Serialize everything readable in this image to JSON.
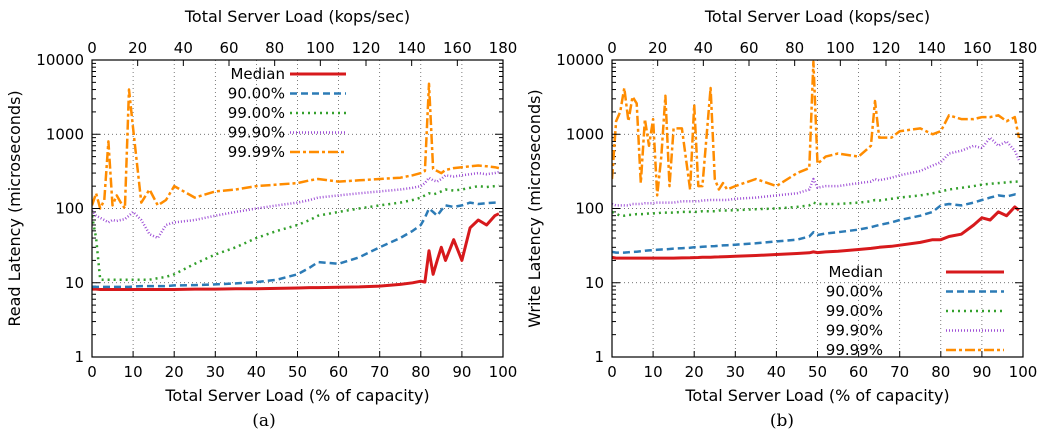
{
  "figure": {
    "captions": [
      "(a)",
      "(b)"
    ]
  },
  "chart_data": [
    {
      "type": "line",
      "panel": "(a)",
      "xlabel": "Total Server Load (% of capacity)",
      "x2label": "Total Server Load (kops/sec)",
      "ylabel": "Read Latency (microseconds)",
      "xlim": [
        0,
        100
      ],
      "x2lim": [
        0,
        180
      ],
      "ylim": [
        1,
        10000
      ],
      "yscale": "log",
      "grid": true,
      "legend_position": "top-center",
      "x_ticks": [
        "0",
        "10",
        "20",
        "30",
        "40",
        "50",
        "60",
        "70",
        "80",
        "90",
        "100"
      ],
      "x2_ticks": [
        "0",
        "20",
        "40",
        "60",
        "80",
        "100",
        "120",
        "140",
        "160",
        "180"
      ],
      "y_ticks": [
        "1",
        "10",
        "100",
        "1000",
        "10000"
      ],
      "x": [
        0,
        1,
        2,
        3,
        4,
        5,
        6,
        7,
        8,
        9,
        10,
        12,
        14,
        16,
        18,
        20,
        25,
        30,
        35,
        40,
        45,
        50,
        53,
        55,
        60,
        65,
        70,
        75,
        78,
        80,
        81,
        82,
        83,
        84,
        85,
        86,
        88,
        90,
        92,
        94,
        96,
        98,
        99
      ],
      "series": [
        {
          "name": "Median",
          "color": "#d7191c",
          "dash": "solid",
          "width": 3,
          "values": [
            8.2,
            8.2,
            8.1,
            8.1,
            8.1,
            8.1,
            8.1,
            8.1,
            8.1,
            8.1,
            8.1,
            8.1,
            8.1,
            8.1,
            8.1,
            8.1,
            8.2,
            8.2,
            8.3,
            8.3,
            8.4,
            8.5,
            8.6,
            8.6,
            8.7,
            8.8,
            9,
            9.5,
            10,
            10.5,
            10.2,
            27,
            13,
            20,
            30,
            20,
            38,
            20,
            55,
            70,
            60,
            80,
            85
          ]
        },
        {
          "name": "90.00%",
          "color": "#2c7bb6",
          "dash": "7,4",
          "width": 2.5,
          "values": [
            8.8,
            8.8,
            8.8,
            8.8,
            8.8,
            8.8,
            8.8,
            8.8,
            8.8,
            8.8,
            8.9,
            9,
            9,
            9,
            9,
            9.2,
            9.3,
            9.5,
            9.8,
            10.2,
            11,
            13,
            16,
            19,
            18,
            22,
            30,
            40,
            50,
            60,
            75,
            100,
            90,
            80,
            95,
            110,
            105,
            110,
            120,
            115,
            118,
            120,
            120
          ]
        },
        {
          "name": "99.00%",
          "color": "#33a02c",
          "dash": "2,4",
          "width": 2.5,
          "values": [
            80,
            40,
            11,
            11,
            11,
            11,
            11,
            11,
            11,
            11,
            11,
            11,
            11,
            11.5,
            12,
            13,
            18,
            24,
            30,
            40,
            50,
            60,
            70,
            80,
            90,
            100,
            110,
            120,
            130,
            140,
            150,
            160,
            155,
            160,
            170,
            180,
            175,
            180,
            190,
            200,
            195,
            200,
            205
          ]
        },
        {
          "name": "99.90%",
          "color": "#9e4fd6",
          "dash": "1,2",
          "width": 2.5,
          "values": [
            95,
            80,
            75,
            70,
            65,
            70,
            68,
            70,
            72,
            80,
            90,
            70,
            45,
            40,
            60,
            65,
            70,
            80,
            90,
            100,
            110,
            120,
            130,
            140,
            150,
            160,
            170,
            180,
            190,
            200,
            220,
            260,
            240,
            230,
            250,
            280,
            270,
            280,
            290,
            300,
            290,
            300,
            310
          ]
        },
        {
          "name": "99.99%",
          "color": "#ff8c00",
          "dash": "10,3,3,3",
          "width": 2.5,
          "values": [
            110,
            160,
            100,
            130,
            800,
            110,
            150,
            120,
            100,
            4000,
            1200,
            120,
            180,
            110,
            130,
            200,
            140,
            170,
            180,
            200,
            210,
            220,
            240,
            250,
            230,
            240,
            250,
            260,
            280,
            300,
            320,
            4800,
            340,
            320,
            300,
            330,
            350,
            360,
            370,
            380,
            370,
            360,
            350
          ]
        }
      ]
    },
    {
      "type": "line",
      "panel": "(b)",
      "xlabel": "Total Server Load (% of capacity)",
      "x2label": "Total Server Load (kops/sec)",
      "ylabel": "Write Latency (microseconds)",
      "xlim": [
        0,
        100
      ],
      "x2lim": [
        0,
        180
      ],
      "ylim": [
        1,
        10000
      ],
      "yscale": "log",
      "grid": true,
      "legend_position": "bottom-right",
      "x_ticks": [
        "0",
        "10",
        "20",
        "30",
        "40",
        "50",
        "60",
        "70",
        "80",
        "90",
        "100"
      ],
      "x2_ticks": [
        "0",
        "20",
        "40",
        "60",
        "80",
        "100",
        "120",
        "140",
        "160",
        "180"
      ],
      "y_ticks": [
        "1",
        "10",
        "100",
        "1000",
        "10000"
      ],
      "x": [
        0,
        1,
        2,
        3,
        4,
        5,
        6,
        7,
        8,
        9,
        10,
        11,
        12,
        13,
        14,
        15,
        17,
        19,
        20,
        21,
        22,
        24,
        25,
        26,
        27,
        28,
        30,
        35,
        40,
        45,
        48,
        49,
        50,
        52,
        55,
        60,
        63,
        64,
        65,
        68,
        70,
        75,
        78,
        80,
        82,
        85,
        88,
        90,
        92,
        94,
        96,
        98,
        99
      ],
      "series": [
        {
          "name": "Median",
          "color": "#d7191c",
          "dash": "solid",
          "width": 3,
          "values": [
            22,
            21.5,
            21.5,
            21.5,
            21.5,
            21.5,
            21.5,
            21.5,
            21.5,
            21.5,
            21.5,
            21.5,
            21.5,
            21.5,
            21.5,
            21.5,
            21.6,
            21.7,
            21.8,
            21.9,
            22,
            22.1,
            22.2,
            22.3,
            22.4,
            22.5,
            22.7,
            23.3,
            24,
            24.8,
            25.3,
            26,
            25.5,
            26,
            26.5,
            28,
            29,
            29.5,
            30,
            31,
            32,
            35,
            38,
            38,
            42,
            45,
            60,
            75,
            70,
            90,
            80,
            105,
            95
          ]
        },
        {
          "name": "90.00%",
          "color": "#2c7bb6",
          "dash": "7,4",
          "width": 2.5,
          "values": [
            26,
            25.5,
            25.5,
            25.5,
            25.7,
            26,
            26.2,
            26.5,
            27,
            27.3,
            27.5,
            27.8,
            28,
            28.2,
            28.5,
            28.8,
            29.2,
            29.6,
            30,
            30.2,
            30.5,
            31,
            31.2,
            31.5,
            31.8,
            32,
            32.5,
            34,
            36,
            38,
            42,
            48,
            44,
            46,
            48,
            52,
            56,
            58,
            60,
            65,
            70,
            80,
            90,
            110,
            115,
            110,
            120,
            130,
            140,
            150,
            145,
            155,
            150
          ]
        },
        {
          "name": "99.00%",
          "color": "#33a02c",
          "dash": "2,4",
          "width": 2.5,
          "values": [
            90,
            85,
            80,
            80,
            82,
            82,
            84,
            84,
            84,
            86,
            86,
            86,
            88,
            88,
            88,
            88,
            90,
            90,
            90,
            90,
            92,
            92,
            92,
            94,
            94,
            94,
            95,
            98,
            100,
            105,
            110,
            120,
            115,
            115,
            115,
            120,
            125,
            130,
            128,
            135,
            140,
            150,
            160,
            170,
            180,
            190,
            200,
            210,
            215,
            220,
            225,
            230,
            230
          ]
        },
        {
          "name": "99.90%",
          "color": "#9e4fd6",
          "dash": "1,2",
          "width": 2.5,
          "values": [
            115,
            110,
            110,
            110,
            110,
            115,
            115,
            115,
            118,
            118,
            118,
            120,
            120,
            120,
            120,
            120,
            125,
            125,
            125,
            125,
            128,
            130,
            130,
            130,
            130,
            130,
            135,
            140,
            150,
            160,
            180,
            250,
            190,
            200,
            200,
            220,
            230,
            250,
            240,
            260,
            280,
            320,
            380,
            420,
            550,
            600,
            700,
            650,
            900,
            700,
            800,
            600,
            450
          ]
        },
        {
          "name": "99.99%",
          "color": "#ff8c00",
          "dash": "10,3,3,3",
          "width": 2.5,
          "values": [
            250,
            1500,
            2000,
            4200,
            1500,
            3200,
            2600,
            220,
            1600,
            700,
            1600,
            150,
            500,
            3300,
            200,
            1200,
            1200,
            180,
            2500,
            200,
            200,
            4200,
            250,
            180,
            220,
            180,
            200,
            250,
            200,
            300,
            350,
            9500,
            400,
            500,
            550,
            500,
            700,
            2800,
            900,
            900,
            1100,
            1200,
            1000,
            1100,
            1800,
            1600,
            1600,
            1700,
            1700,
            1800,
            1500,
            1700,
            900
          ]
        }
      ]
    }
  ]
}
